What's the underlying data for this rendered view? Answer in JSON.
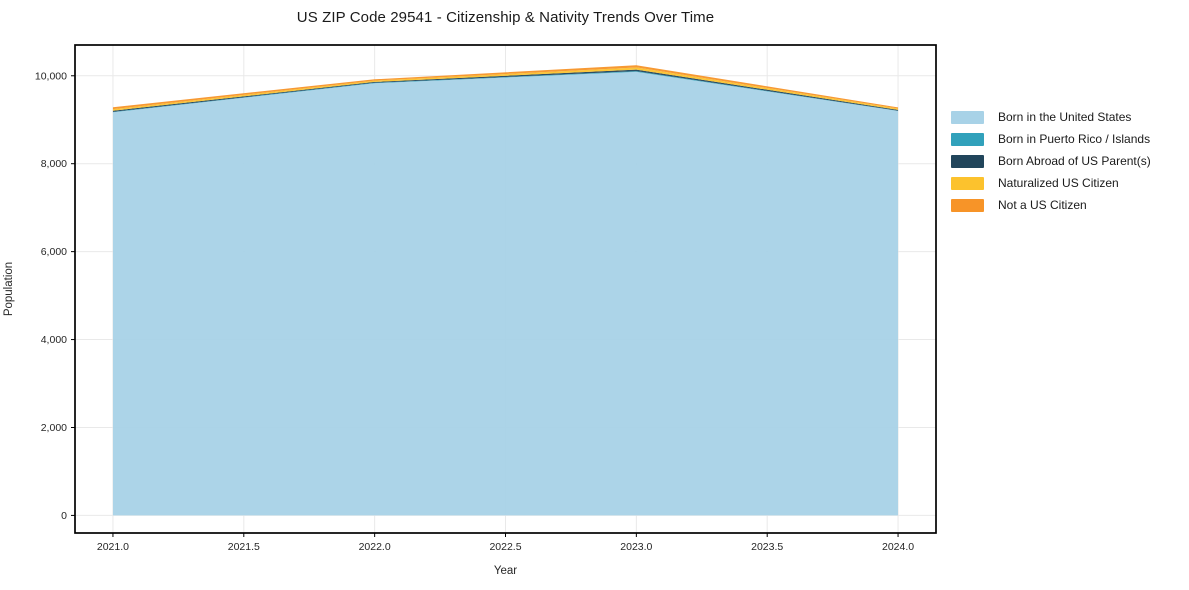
{
  "figure": {
    "title": "US ZIP Code 29541 - Citizenship & Nativity Trends Over Time",
    "xlabel": "Year",
    "ylabel": "Population"
  },
  "chart_data": {
    "type": "area",
    "stacked": true,
    "title": "US ZIP Code 29541 - Citizenship & Nativity Trends Over Time",
    "xlabel": "Year",
    "ylabel": "Population",
    "x": [
      2021,
      2022,
      2023,
      2024
    ],
    "series": [
      {
        "name": "Born in the United States",
        "color": "#a8d2e7",
        "values": [
          9170,
          9830,
          10090,
          9200
        ]
      },
      {
        "name": "Born in Puerto Rico / Islands",
        "color": "#31a1bb",
        "values": [
          10,
          10,
          15,
          5
        ]
      },
      {
        "name": "Born Abroad of US Parent(s)",
        "color": "#21455b",
        "values": [
          25,
          20,
          35,
          20
        ]
      },
      {
        "name": "Naturalized US Citizen",
        "color": "#fcc22d",
        "values": [
          35,
          30,
          50,
          30
        ]
      },
      {
        "name": "Not a US Citizen",
        "color": "#f79428",
        "values": [
          45,
          30,
          50,
          25
        ]
      }
    ],
    "stack_totals": [
      9285,
      9920,
      10240,
      9280
    ],
    "xticks": [
      2021.0,
      2021.5,
      2022.0,
      2022.5,
      2023.0,
      2023.5,
      2024.0
    ],
    "yticks": [
      0,
      2000,
      4000,
      6000,
      8000,
      10000
    ],
    "xlim": [
      2020.855,
      2024.145
    ],
    "ylim": [
      -400,
      10700
    ],
    "grid": true,
    "grid_color": "#e9e9e9",
    "frame_color": "#000000",
    "background": "#ffffff",
    "legend_position": "right"
  }
}
